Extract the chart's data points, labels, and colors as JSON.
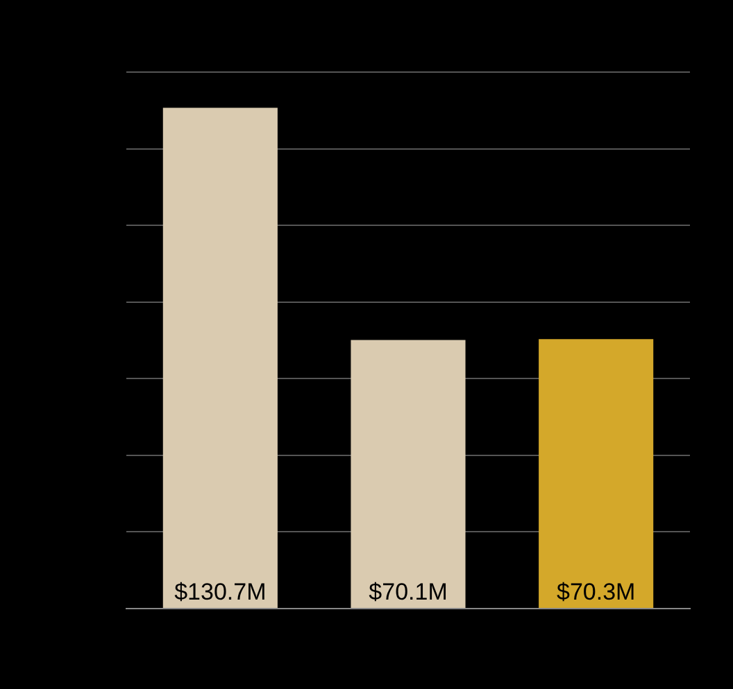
{
  "chart_data": {
    "type": "bar",
    "categories": [
      null,
      null,
      null
    ],
    "values": [
      130.7,
      70.1,
      70.3
    ],
    "colors": [
      "#dacbb0",
      "#dacbb0",
      "#d4a82a"
    ],
    "value_labels": [
      "$130.7M",
      "$70.1M",
      "$70.3M"
    ],
    "ylim": [
      0,
      140
    ],
    "yticks": [
      0,
      20,
      40,
      60,
      80,
      100,
      120,
      140
    ],
    "grid": "y",
    "tick_labels": false,
    "legend": false
  }
}
